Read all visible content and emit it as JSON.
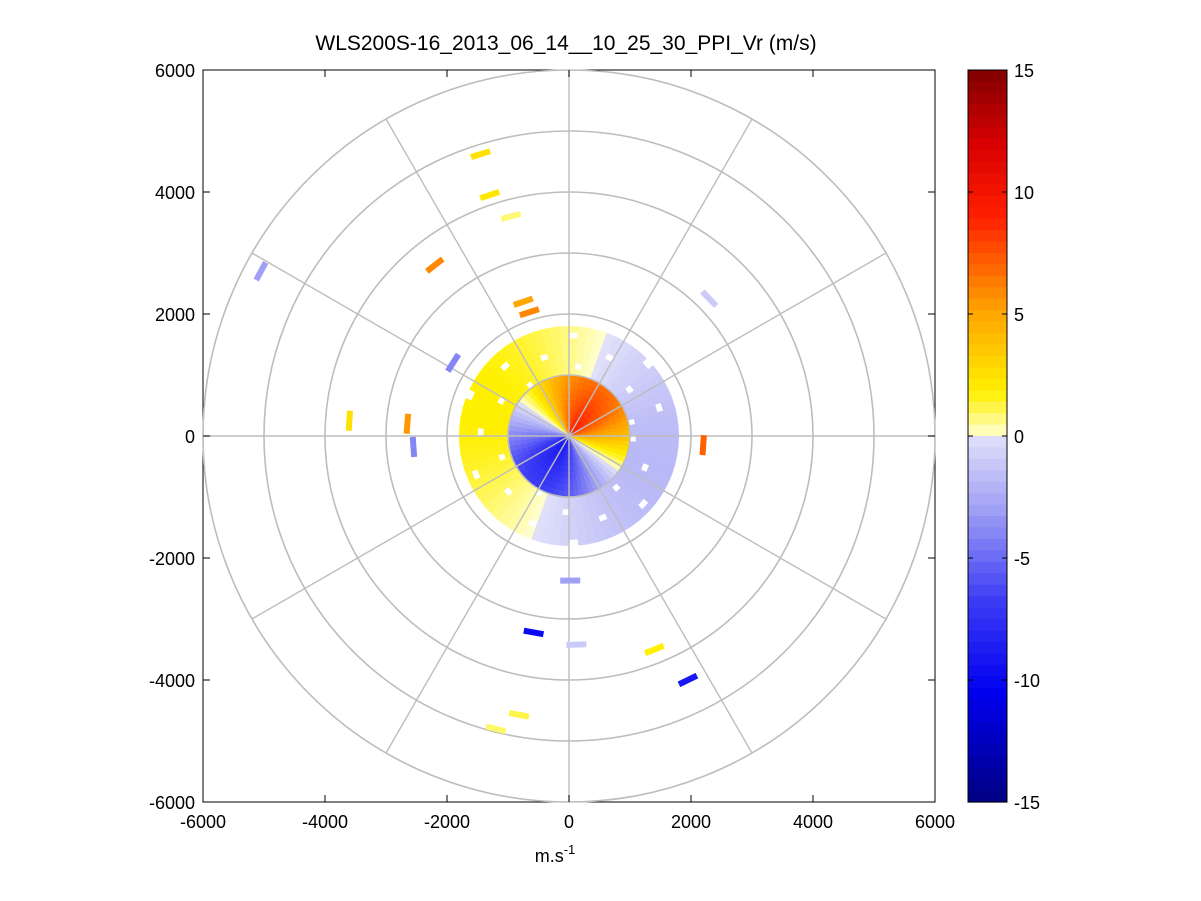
{
  "chart_data": {
    "type": "polar_ppi",
    "title": "WLS200S-16_2013_06_14__10_25_30_PPI_Vr (m/s)",
    "xlabel": "m.s",
    "xlabel_superscript": "-1",
    "ylabel": "",
    "xlim": [
      -6000,
      6000
    ],
    "ylim": [
      -6000,
      6000
    ],
    "x_ticks": [
      "-6000",
      "-4000",
      "-2000",
      "0",
      "2000",
      "4000",
      "6000"
    ],
    "y_ticks": [
      "6000",
      "4000",
      "2000",
      "0",
      "-2000",
      "-4000",
      "-6000"
    ],
    "x_tick_values": [
      -6000,
      -4000,
      -2000,
      0,
      2000,
      4000,
      6000
    ],
    "y_tick_values": [
      6000,
      4000,
      2000,
      0,
      -2000,
      -4000,
      -6000
    ],
    "range_rings": [
      1000,
      2000,
      3000,
      4000,
      5000,
      6000
    ],
    "spokes_deg": [
      0,
      30,
      60,
      90,
      120,
      150,
      180,
      210,
      240,
      270,
      300,
      330
    ],
    "colorbar": {
      "min": -15,
      "max": 15,
      "ticks": [
        "15",
        "10",
        "5",
        "0",
        "-5",
        "-10",
        "-15"
      ],
      "tick_values": [
        15,
        10,
        5,
        0,
        -5,
        -10,
        -15
      ]
    },
    "core": {
      "inner_radius": 1000,
      "outer_radius": 1800,
      "description_values": {
        "northeast_peak": 9,
        "southwest_peak": -9
      }
    },
    "scatter_points": [
      {
        "x": -1450,
        "y": 4620,
        "v": 2.5
      },
      {
        "x": -1300,
        "y": 3950,
        "v": 2.2
      },
      {
        "x": -950,
        "y": 3600,
        "v": 0.8
      },
      {
        "x": -2200,
        "y": 2800,
        "v": 6
      },
      {
        "x": -5050,
        "y": 2700,
        "v": -3
      },
      {
        "x": -750,
        "y": 2200,
        "v": 5
      },
      {
        "x": -650,
        "y": 2030,
        "v": 6
      },
      {
        "x": 2300,
        "y": 2250,
        "v": -1
      },
      {
        "x": -1900,
        "y": 1200,
        "v": -4
      },
      {
        "x": -3600,
        "y": 250,
        "v": 2.5
      },
      {
        "x": -2650,
        "y": 200,
        "v": 5.5
      },
      {
        "x": -2550,
        "y": -180,
        "v": -4
      },
      {
        "x": 2200,
        "y": -150,
        "v": 7
      },
      {
        "x": 20,
        "y": -2370,
        "v": -3
      },
      {
        "x": -580,
        "y": -3220,
        "v": -10
      },
      {
        "x": 120,
        "y": -3420,
        "v": -1
      },
      {
        "x": 1400,
        "y": -3500,
        "v": 1.8
      },
      {
        "x": 1950,
        "y": -4000,
        "v": -9
      },
      {
        "x": -820,
        "y": -4570,
        "v": 1.2
      },
      {
        "x": -1200,
        "y": -4800,
        "v": 0.9
      }
    ]
  }
}
